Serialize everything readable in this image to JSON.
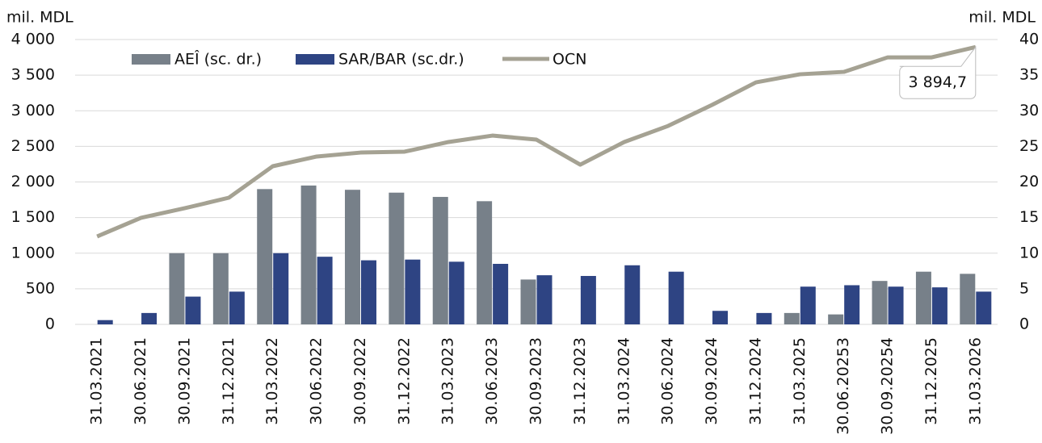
{
  "chart_data": {
    "type": "bar-line",
    "y_label": "mil. MDL",
    "y2_label": "mil. MDL",
    "categories": [
      "31.03.2021",
      "30.06.2021",
      "30.09.2021",
      "31.12.2021",
      "31.03.2022",
      "30.06.2022",
      "30.09.2022",
      "31.12.2022",
      "31.03.2023",
      "30.06.2023",
      "30.09.2023",
      "31.12.2023",
      "31.03.2024",
      "30.06.2024",
      "30.09.2024",
      "31.12.2024",
      "31.03.2025",
      "30.06.20253",
      "30.09.20254",
      "31.12.2025",
      "31.03.2026"
    ],
    "series": [
      {
        "name": "AEÎ (sc. dr.)",
        "type": "bar",
        "axis": "y2",
        "color": "#778089",
        "values": [
          0,
          0,
          10.0,
          10.0,
          19.0,
          19.5,
          18.9,
          18.5,
          17.9,
          17.3,
          6.3,
          0,
          0,
          0,
          0,
          0,
          1.6,
          1.4,
          6.1,
          7.4,
          7.1
        ]
      },
      {
        "name": "SAR/BAR (sc.dr.)",
        "type": "bar",
        "axis": "y2",
        "color": "#2e4483",
        "values": [
          0.6,
          1.6,
          3.9,
          4.6,
          10.0,
          9.5,
          9.0,
          9.1,
          8.8,
          8.5,
          6.9,
          6.8,
          8.3,
          7.4,
          1.9,
          1.6,
          5.3,
          5.5,
          5.3,
          5.2,
          4.6
        ]
      },
      {
        "name": "OCN",
        "type": "line",
        "color": "#a5a293",
        "values": [
          1235,
          1496,
          1632,
          1779,
          2221,
          2357,
          2413,
          2425,
          2561,
          2651,
          2595,
          2243,
          2561,
          2787,
          3082,
          3399,
          3512,
          3546,
          3750,
          3750,
          3894.7
        ],
        "value_labels": [
          null,
          null,
          null,
          null,
          null,
          null,
          null,
          null,
          null,
          null,
          null,
          null,
          null,
          null,
          null,
          null,
          null,
          null,
          null,
          null,
          "3 894,7"
        ]
      }
    ],
    "ylim": [
      0,
      4000
    ],
    "yticks": [
      0,
      500,
      {
        "value": 1000,
        "label": "1 000"
      },
      {
        "value": 1500,
        "label": "1 500"
      },
      {
        "value": 2000,
        "label": "2 000"
      },
      {
        "value": 2500,
        "label": "2 500"
      },
      {
        "value": 3000,
        "label": "3 000"
      },
      {
        "value": 3500,
        "label": "3 500"
      },
      {
        "value": 4000,
        "label": "4 000"
      }
    ],
    "y2lim": [
      0,
      40
    ],
    "y2ticks": [
      0,
      5,
      10,
      15,
      20,
      25,
      30,
      35,
      40
    ],
    "grid": true,
    "legend": "top"
  }
}
